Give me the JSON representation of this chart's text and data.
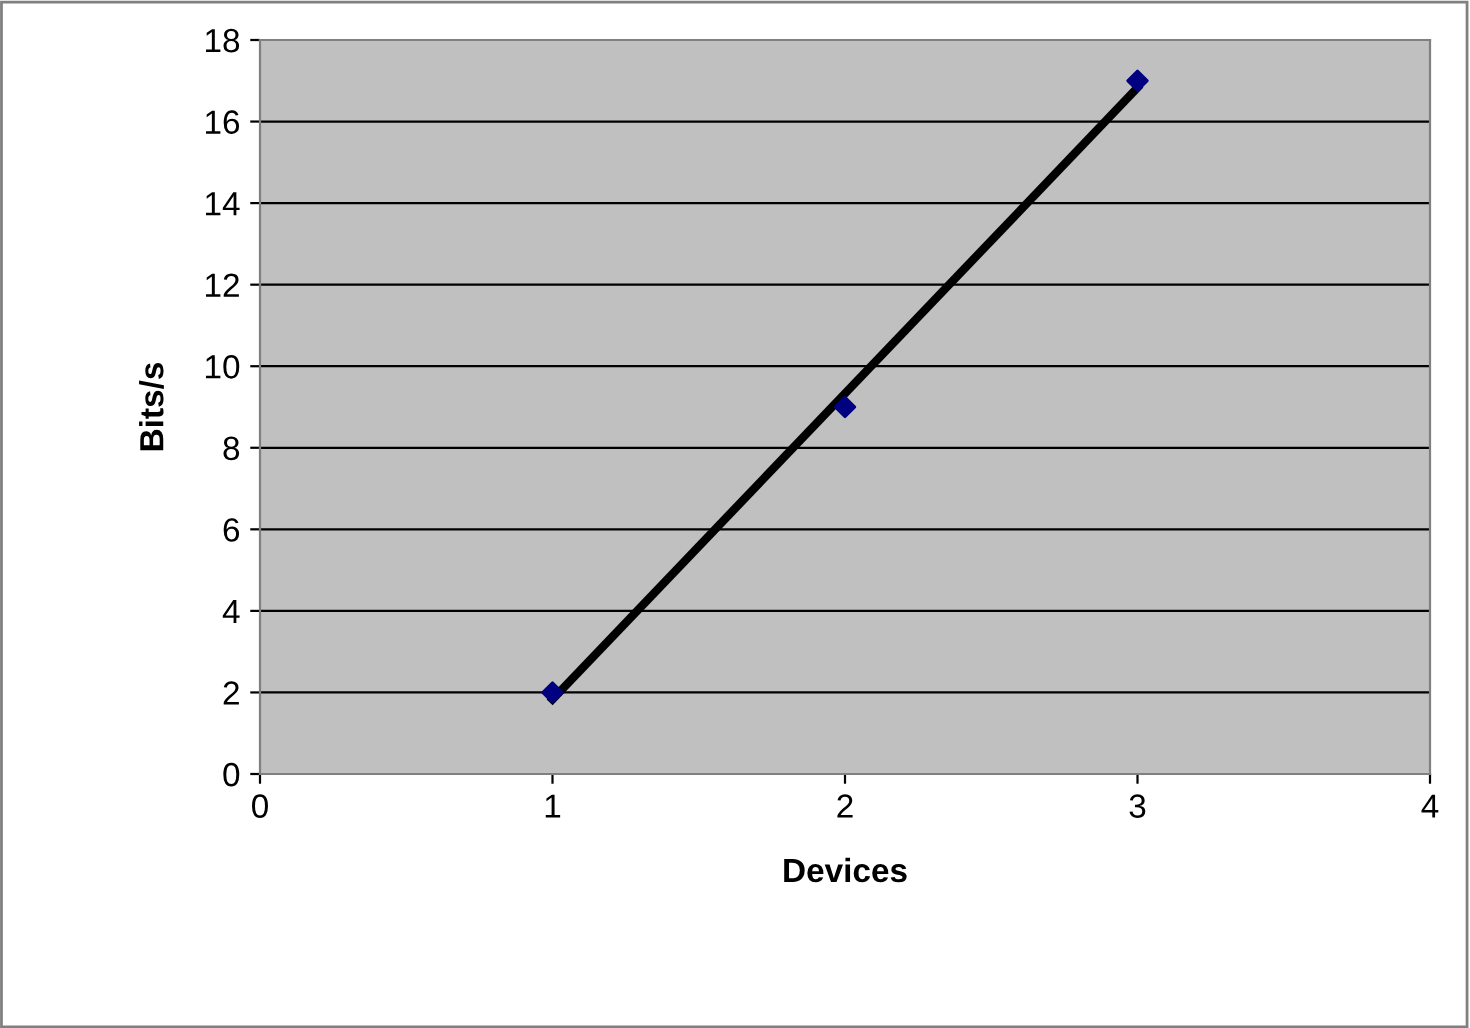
{
  "chart_data": {
    "type": "scatter",
    "xlabel": "Devices",
    "ylabel": "Bits/s",
    "x": [
      1,
      2,
      3
    ],
    "series": [
      {
        "color": "#000080",
        "values": [
          2,
          9,
          17
        ],
        "marker": "diamond"
      },
      {
        "type": "line",
        "color": "#000000",
        "x": [
          1,
          3
        ],
        "values": [
          1.83,
          16.83
        ],
        "marker": "none"
      }
    ],
    "xlim": [
      0,
      4
    ],
    "xticks": [
      0,
      1,
      2,
      3,
      4
    ],
    "ylim": [
      0,
      18
    ],
    "yticks": [
      0,
      2,
      4,
      6,
      8,
      10,
      12,
      14,
      16,
      18
    ],
    "grid": "y"
  }
}
